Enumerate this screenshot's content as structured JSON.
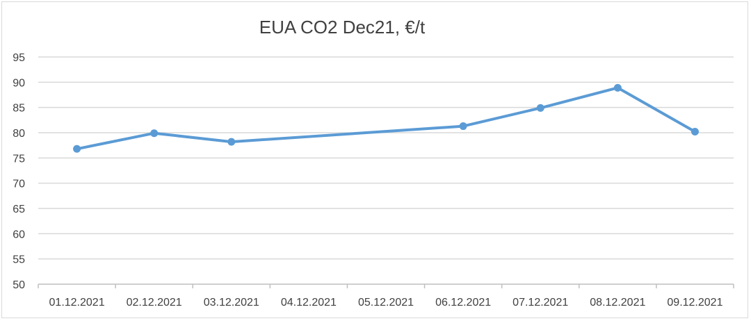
{
  "chart_data": {
    "type": "line",
    "title": "EUA CO2 Dec21, €/t",
    "xlabel": "",
    "ylabel": "",
    "categories": [
      "01.12.2021",
      "02.12.2021",
      "03.12.2021",
      "04.12.2021",
      "05.12.2021",
      "06.12.2021",
      "07.12.2021",
      "08.12.2021",
      "09.12.2021"
    ],
    "series": [
      {
        "values": [
          76.8,
          79.9,
          78.2,
          null,
          null,
          81.3,
          84.9,
          88.9,
          80.2
        ],
        "color": "#5b9bd5"
      }
    ],
    "ylim": [
      50,
      95
    ],
    "yticks": [
      50,
      55,
      60,
      65,
      70,
      75,
      80,
      85,
      90,
      95
    ],
    "grid": true,
    "gridColor": "#d9d9d9",
    "legend": "none"
  }
}
